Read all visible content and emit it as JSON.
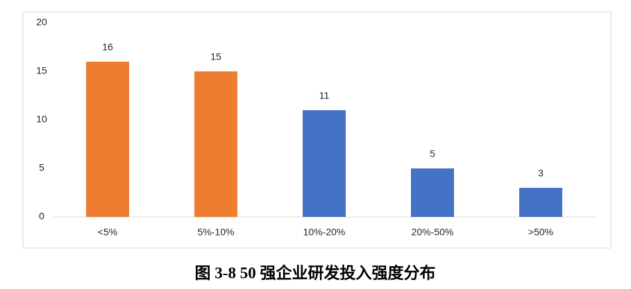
{
  "chart_data": {
    "type": "bar",
    "title": "图 3-8 50 强企业研发投入强度分布",
    "categories": [
      "<5%",
      "5%-10%",
      "10%-20%",
      "20%-50%",
      ">50%"
    ],
    "values": [
      16,
      15,
      11,
      5,
      3
    ],
    "colors": [
      "#ed7d31",
      "#ed7d31",
      "#4472c4",
      "#4472c4",
      "#4472c4"
    ],
    "ylim": [
      0,
      20
    ],
    "yticks": [
      0,
      5,
      10,
      15,
      20
    ],
    "grid": false
  }
}
